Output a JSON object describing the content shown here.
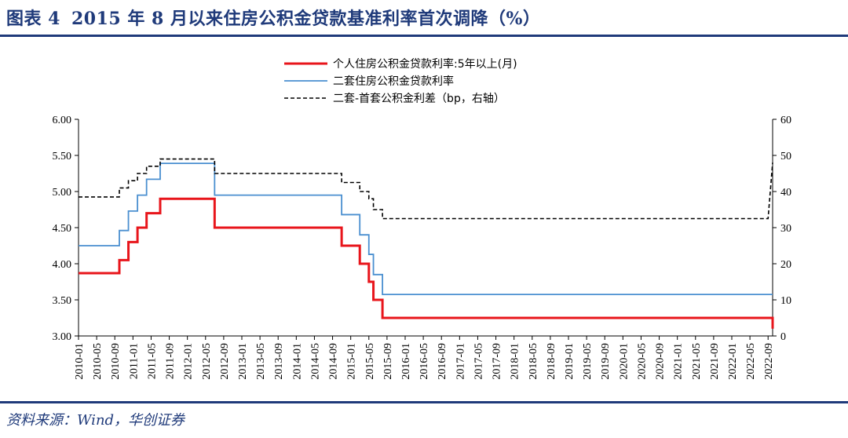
{
  "header": {
    "figure_label": "图表 4",
    "title": "2015 年 8 月以来住房公积金贷款基准利率首次调降（%）"
  },
  "footer": {
    "source": "资料来源：Wind，华创证券"
  },
  "chart_data": {
    "type": "line",
    "title": "",
    "legend_position": "top",
    "xlabel": "",
    "ylabel": "",
    "y_left": {
      "ticks": [
        "6.00",
        "5.50",
        "5.00",
        "4.50",
        "4.00",
        "3.50",
        "3.00"
      ],
      "range": [
        3.0,
        6.0
      ]
    },
    "y_right": {
      "ticks": [
        "60",
        "50",
        "40",
        "30",
        "20",
        "10",
        "0"
      ],
      "range": [
        0,
        60
      ]
    },
    "x_ticks": [
      "2010-01",
      "2010-05",
      "2010-09",
      "2011-01",
      "2011-05",
      "2011-09",
      "2012-01",
      "2012-05",
      "2012-09",
      "2013-01",
      "2013-05",
      "2013-09",
      "2014-01",
      "2014-05",
      "2014-09",
      "2015-01",
      "2015-05",
      "2015-09",
      "2016-01",
      "2016-05",
      "2016-09",
      "2017-01",
      "2017-05",
      "2017-09",
      "2018-01",
      "2018-05",
      "2018-09",
      "2019-01",
      "2019-05",
      "2019-09",
      "2020-01",
      "2020-05",
      "2020-09",
      "2021-01",
      "2021-05",
      "2021-09",
      "2022-01",
      "2022-05",
      "2022-09"
    ],
    "series": [
      {
        "name": "个人住房公积金贷款利率:5年以上(月)",
        "axis": "left",
        "color": "#e8151b",
        "style": "solid",
        "x": [
          "2010-01",
          "2010-10",
          "2010-12",
          "2011-02",
          "2011-04",
          "2011-07",
          "2012-06",
          "2012-07",
          "2014-11",
          "2015-03",
          "2015-05",
          "2015-06",
          "2015-08",
          "2015-10",
          "2022-09",
          "2022-10"
        ],
        "values": [
          3.87,
          4.05,
          4.3,
          4.5,
          4.7,
          4.9,
          4.9,
          4.5,
          4.25,
          4.0,
          3.75,
          3.5,
          3.25,
          3.25,
          3.25,
          3.1
        ]
      },
      {
        "name": "二套住房公积金贷款利率",
        "axis": "left",
        "color": "#4a8fd0",
        "style": "solid",
        "x": [
          "2010-01",
          "2010-10",
          "2010-12",
          "2011-02",
          "2011-04",
          "2011-07",
          "2012-06",
          "2012-07",
          "2014-11",
          "2015-03",
          "2015-05",
          "2015-06",
          "2015-08",
          "2015-10",
          "2022-09",
          "2022-10"
        ],
        "values": [
          4.25,
          4.46,
          4.73,
          4.95,
          5.17,
          5.39,
          5.39,
          4.95,
          4.68,
          4.4,
          4.13,
          3.85,
          3.575,
          3.575,
          3.575,
          3.575
        ]
      },
      {
        "name": "二套-首套公积金利差（bp，右轴）",
        "axis": "right",
        "color": "#000000",
        "style": "dashed",
        "x": [
          "2010-01",
          "2010-10",
          "2010-12",
          "2011-02",
          "2011-04",
          "2011-07",
          "2012-06",
          "2012-07",
          "2014-11",
          "2015-03",
          "2015-05",
          "2015-06",
          "2015-08",
          "2015-10",
          "2022-09",
          "2022-10"
        ],
        "values": [
          38.5,
          41,
          43,
          45,
          47,
          49,
          49,
          45,
          42.5,
          40,
          38,
          35,
          32.5,
          32.5,
          32.5,
          48
        ]
      }
    ]
  }
}
